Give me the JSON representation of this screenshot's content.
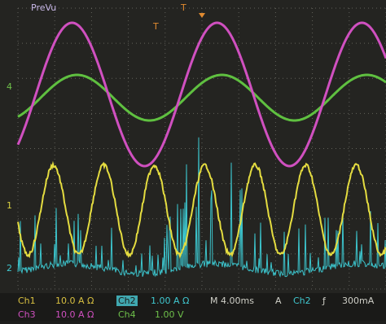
{
  "header": {
    "title": "PreVu",
    "trigger_markers": [
      "T",
      "T"
    ]
  },
  "channel_markers": [
    "4",
    "1",
    "2"
  ],
  "status": {
    "row1": [
      "Ch1",
      "10.0 A Ω",
      "Ch2",
      "1.00 A Ω",
      "M 4.00ms",
      "A",
      "Ch2",
      "ƒ",
      "300mA"
    ],
    "row2": [
      "Ch3",
      "10.0 A Ω",
      "Ch4",
      "1.00 V"
    ]
  }
}
